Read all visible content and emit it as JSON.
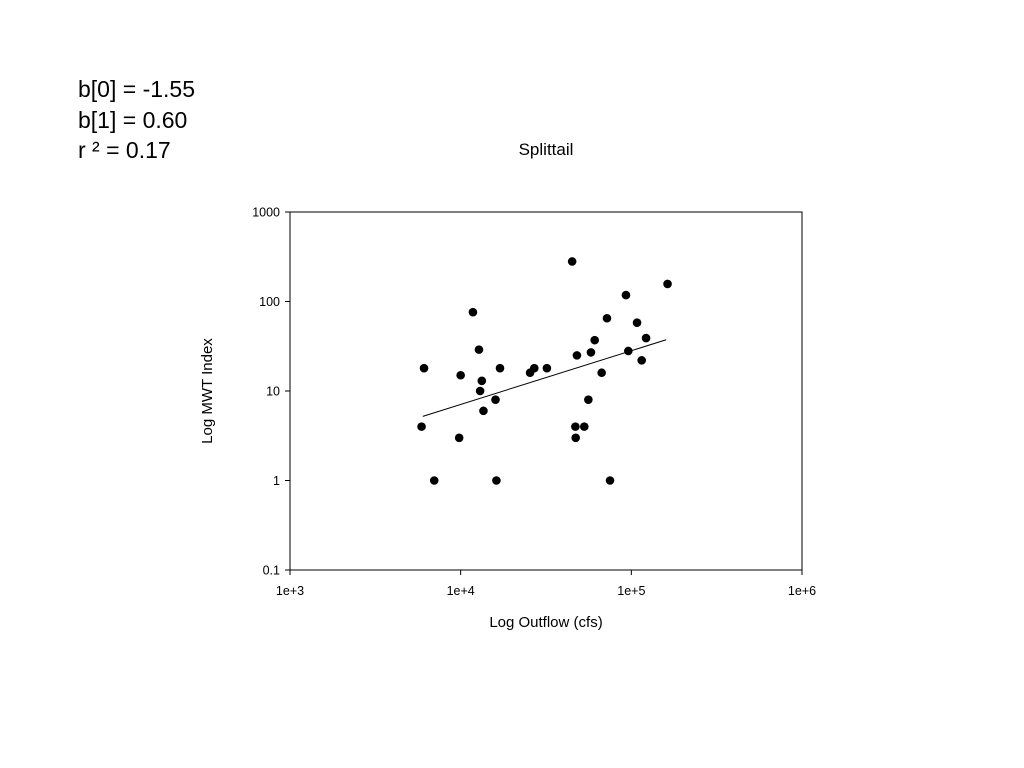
{
  "stats": {
    "b0": "b[0] = -1.55",
    "b1": "b[1] = 0.60",
    "r2": "r ² = 0.17"
  },
  "chart_data": {
    "type": "scatter",
    "title": "Splittail",
    "xlabel": "Log Outflow (cfs)",
    "ylabel": "Log MWT Index",
    "x_scale": "log",
    "y_scale": "log",
    "xlim": [
      1000,
      1000000
    ],
    "ylim": [
      0.1,
      1000
    ],
    "x_ticks": [
      1000,
      10000,
      100000,
      1000000
    ],
    "x_tick_labels": [
      "1e+3",
      "1e+4",
      "1e+5",
      "1e+6"
    ],
    "y_ticks": [
      0.1,
      1,
      10,
      100,
      1000
    ],
    "y_tick_labels": [
      "0.1",
      "1",
      "10",
      "100",
      "1000"
    ],
    "grid": false,
    "marker_color": "#000000",
    "points": [
      {
        "x": 5900,
        "y": 4
      },
      {
        "x": 6100,
        "y": 18
      },
      {
        "x": 7000,
        "y": 1
      },
      {
        "x": 9800,
        "y": 3
      },
      {
        "x": 10000,
        "y": 15
      },
      {
        "x": 11800,
        "y": 76
      },
      {
        "x": 12800,
        "y": 29
      },
      {
        "x": 13000,
        "y": 10
      },
      {
        "x": 13300,
        "y": 13
      },
      {
        "x": 13600,
        "y": 6
      },
      {
        "x": 16000,
        "y": 8
      },
      {
        "x": 16200,
        "y": 1
      },
      {
        "x": 17000,
        "y": 18
      },
      {
        "x": 25500,
        "y": 16
      },
      {
        "x": 27000,
        "y": 18
      },
      {
        "x": 32000,
        "y": 18
      },
      {
        "x": 45000,
        "y": 280
      },
      {
        "x": 47000,
        "y": 4
      },
      {
        "x": 47200,
        "y": 3
      },
      {
        "x": 48000,
        "y": 25
      },
      {
        "x": 53000,
        "y": 4
      },
      {
        "x": 56000,
        "y": 8
      },
      {
        "x": 58000,
        "y": 27
      },
      {
        "x": 61000,
        "y": 37
      },
      {
        "x": 67000,
        "y": 16
      },
      {
        "x": 72000,
        "y": 65
      },
      {
        "x": 75000,
        "y": 1
      },
      {
        "x": 93000,
        "y": 118
      },
      {
        "x": 96000,
        "y": 28
      },
      {
        "x": 108000,
        "y": 58
      },
      {
        "x": 115000,
        "y": 22
      },
      {
        "x": 122000,
        "y": 39
      },
      {
        "x": 163000,
        "y": 157
      }
    ],
    "fit_line": {
      "b0": -1.55,
      "b1": 0.6,
      "x_range": [
        6000,
        160000
      ]
    }
  }
}
